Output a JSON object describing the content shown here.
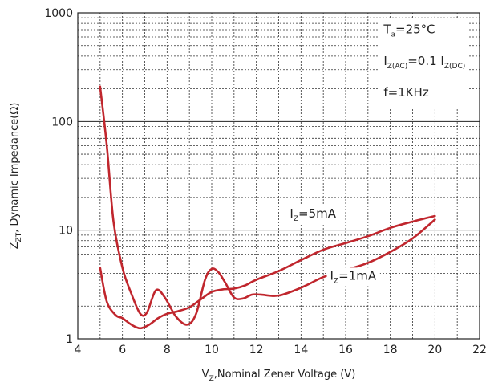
{
  "chart_data": {
    "type": "line",
    "title": "",
    "xlabel": {
      "main": "V",
      "sub": "Z",
      "rest": ",Nominal Zener Voltage (V)"
    },
    "ylabel": {
      "main": "Z",
      "sub": "ZT",
      "rest": ", Dynamic Impedance(Ω)"
    },
    "x_scale": "linear",
    "y_scale": "log",
    "xlim": [
      4,
      22
    ],
    "ylim": [
      1,
      1000
    ],
    "x_ticks": [
      4,
      6,
      8,
      10,
      12,
      14,
      16,
      18,
      20,
      22
    ],
    "y_ticks": [
      1,
      10,
      100,
      1000
    ],
    "y_tick_labels": [
      "1",
      "10",
      "100",
      "1000"
    ],
    "grid": true,
    "line_color": "#c0262d",
    "conditions": [
      {
        "main": "T",
        "sub": "a",
        "rest": "=25°C"
      },
      {
        "main": "I",
        "sub": "Z(AC)",
        "rest": "=0.1 I",
        "sub2": "Z(DC)"
      },
      {
        "main": "f=1KHz"
      }
    ],
    "series": [
      {
        "name": {
          "main": "I",
          "sub": "Z",
          "rest": "=5mA"
        },
        "label_at": [
          13.5,
          13
        ],
        "x": [
          5.0,
          5.3,
          5.6,
          6.0,
          6.4,
          6.8,
          7.1,
          7.5,
          7.9,
          8.4,
          8.9,
          9.3,
          9.7,
          10.0,
          10.3,
          10.6,
          11.0,
          11.4,
          11.8,
          12.2,
          13.0,
          14.0,
          15.0,
          16.0,
          17.0,
          18.0,
          19.0,
          20.0
        ],
        "y": [
          210,
          60,
          12,
          4.5,
          2.6,
          1.7,
          1.75,
          2.8,
          2.4,
          1.6,
          1.35,
          1.7,
          3.5,
          4.4,
          4.1,
          3.3,
          2.4,
          2.35,
          2.55,
          2.55,
          2.5,
          2.95,
          3.7,
          4.3,
          5.0,
          6.3,
          8.4,
          12.5
        ]
      },
      {
        "name": {
          "main": "I",
          "sub": "Z",
          "rest": "=1mA"
        },
        "label_at": [
          15.3,
          3.5
        ],
        "x": [
          5.0,
          5.3,
          5.7,
          6.0,
          6.4,
          6.8,
          7.2,
          7.6,
          8.0,
          8.5,
          9.0,
          9.5,
          10.0,
          10.5,
          11.0,
          11.5,
          12.0,
          13.0,
          14.0,
          15.0,
          16.0,
          17.0,
          18.0,
          19.0,
          20.0
        ],
        "y": [
          4.5,
          2.2,
          1.65,
          1.55,
          1.35,
          1.25,
          1.35,
          1.55,
          1.7,
          1.8,
          1.95,
          2.3,
          2.7,
          2.85,
          2.9,
          3.1,
          3.5,
          4.2,
          5.3,
          6.6,
          7.6,
          8.8,
          10.5,
          12.0,
          13.5
        ]
      }
    ]
  }
}
